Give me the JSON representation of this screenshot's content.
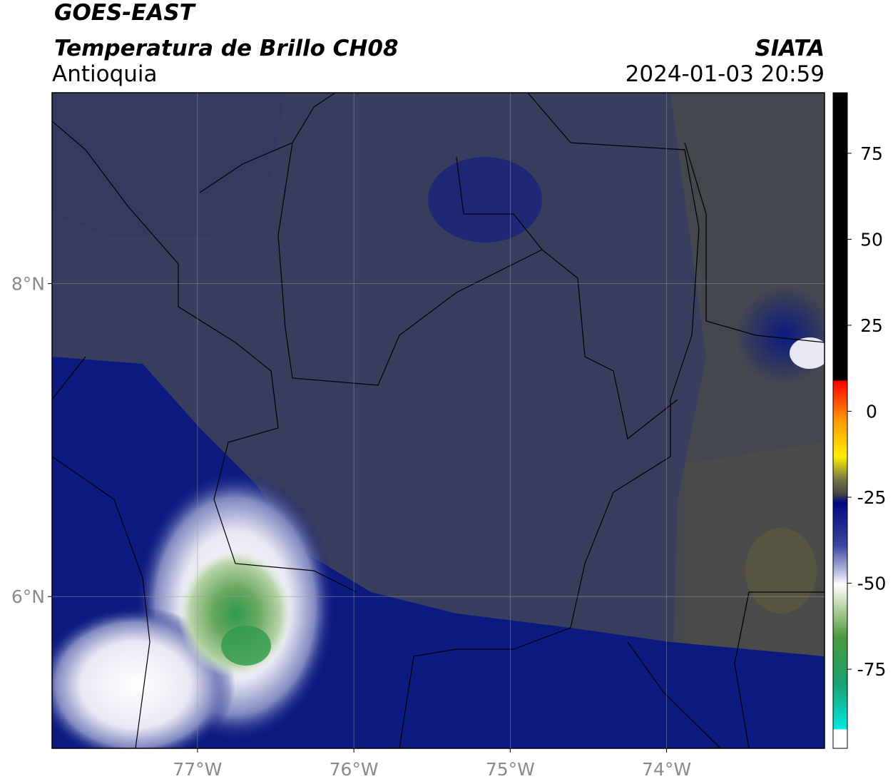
{
  "header": {
    "title": "GOES-EAST",
    "subtitle": "Temperatura de Brillo CH08",
    "region": "Antioquia",
    "source": "SIATA",
    "datetime": "2024-01-03 20:59"
  },
  "map": {
    "xlim": [
      -77.93,
      -72.99
    ],
    "ylim": [
      5.03,
      9.22
    ],
    "xticks": [
      {
        "value": -77,
        "label": "77°W"
      },
      {
        "value": -76,
        "label": "76°W"
      },
      {
        "value": -75,
        "label": "75°W"
      },
      {
        "value": -74,
        "label": "74°W"
      }
    ],
    "yticks": [
      {
        "value": 6,
        "label": "6°N"
      },
      {
        "value": 8,
        "label": "8°N"
      }
    ],
    "grid": true
  },
  "colorbar": {
    "lim": [
      -98,
      92.6
    ],
    "ticks": [
      -75,
      -50,
      -25,
      0,
      25,
      50,
      75
    ]
  }
}
